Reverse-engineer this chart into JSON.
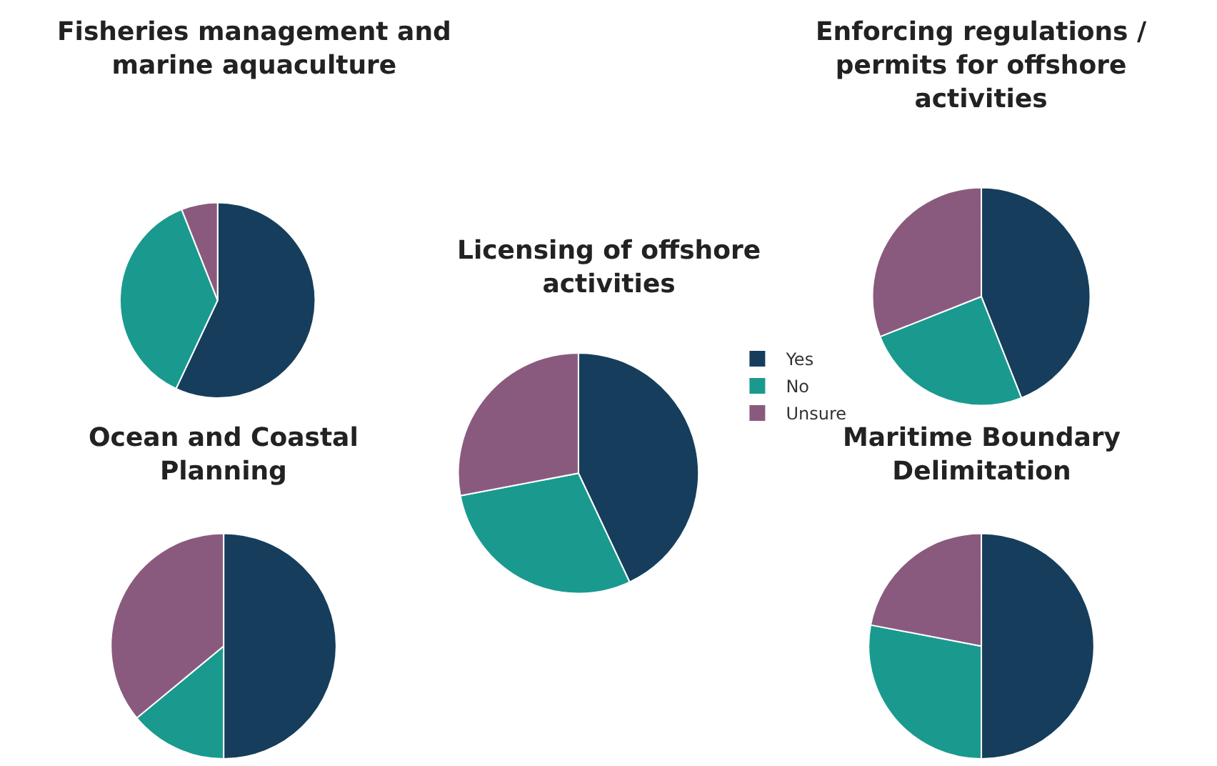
{
  "chart_data": [
    {
      "type": "pie",
      "title": "Fisheries management and marine aquaculture",
      "categories": [
        null,
        null,
        null
      ],
      "values": [
        57,
        37,
        6
      ],
      "colors": [
        "#163e5c",
        "#1a9a8f",
        "#8a5a7e"
      ],
      "legend": false
    },
    {
      "type": "pie",
      "title": "Enforcing regulations / permits for offshore activities",
      "categories": [
        null,
        null,
        null
      ],
      "values": [
        44,
        25,
        31
      ],
      "colors": [
        "#163e5c",
        "#1a9a8f",
        "#8a5a7e"
      ],
      "legend": false
    },
    {
      "type": "pie",
      "title": "Licensing of offshore activities",
      "categories": [
        "Yes",
        "No",
        "Unsure"
      ],
      "values": [
        43,
        29,
        28
      ],
      "colors": [
        "#163e5c",
        "#1a9a8f",
        "#8a5a7e"
      ],
      "legend": "right"
    },
    {
      "type": "pie",
      "title": "Ocean and Coastal Planning",
      "categories": [
        null,
        null,
        null
      ],
      "values": [
        50,
        14,
        36
      ],
      "colors": [
        "#163e5c",
        "#1a9a8f",
        "#8a5a7e"
      ],
      "legend": false
    },
    {
      "type": "pie",
      "title": "Maritime Boundary Delimitation",
      "categories": [
        null,
        null,
        null
      ],
      "values": [
        50,
        28,
        22
      ],
      "colors": [
        "#163e5c",
        "#1a9a8f",
        "#8a5a7e"
      ],
      "legend": false
    }
  ]
}
